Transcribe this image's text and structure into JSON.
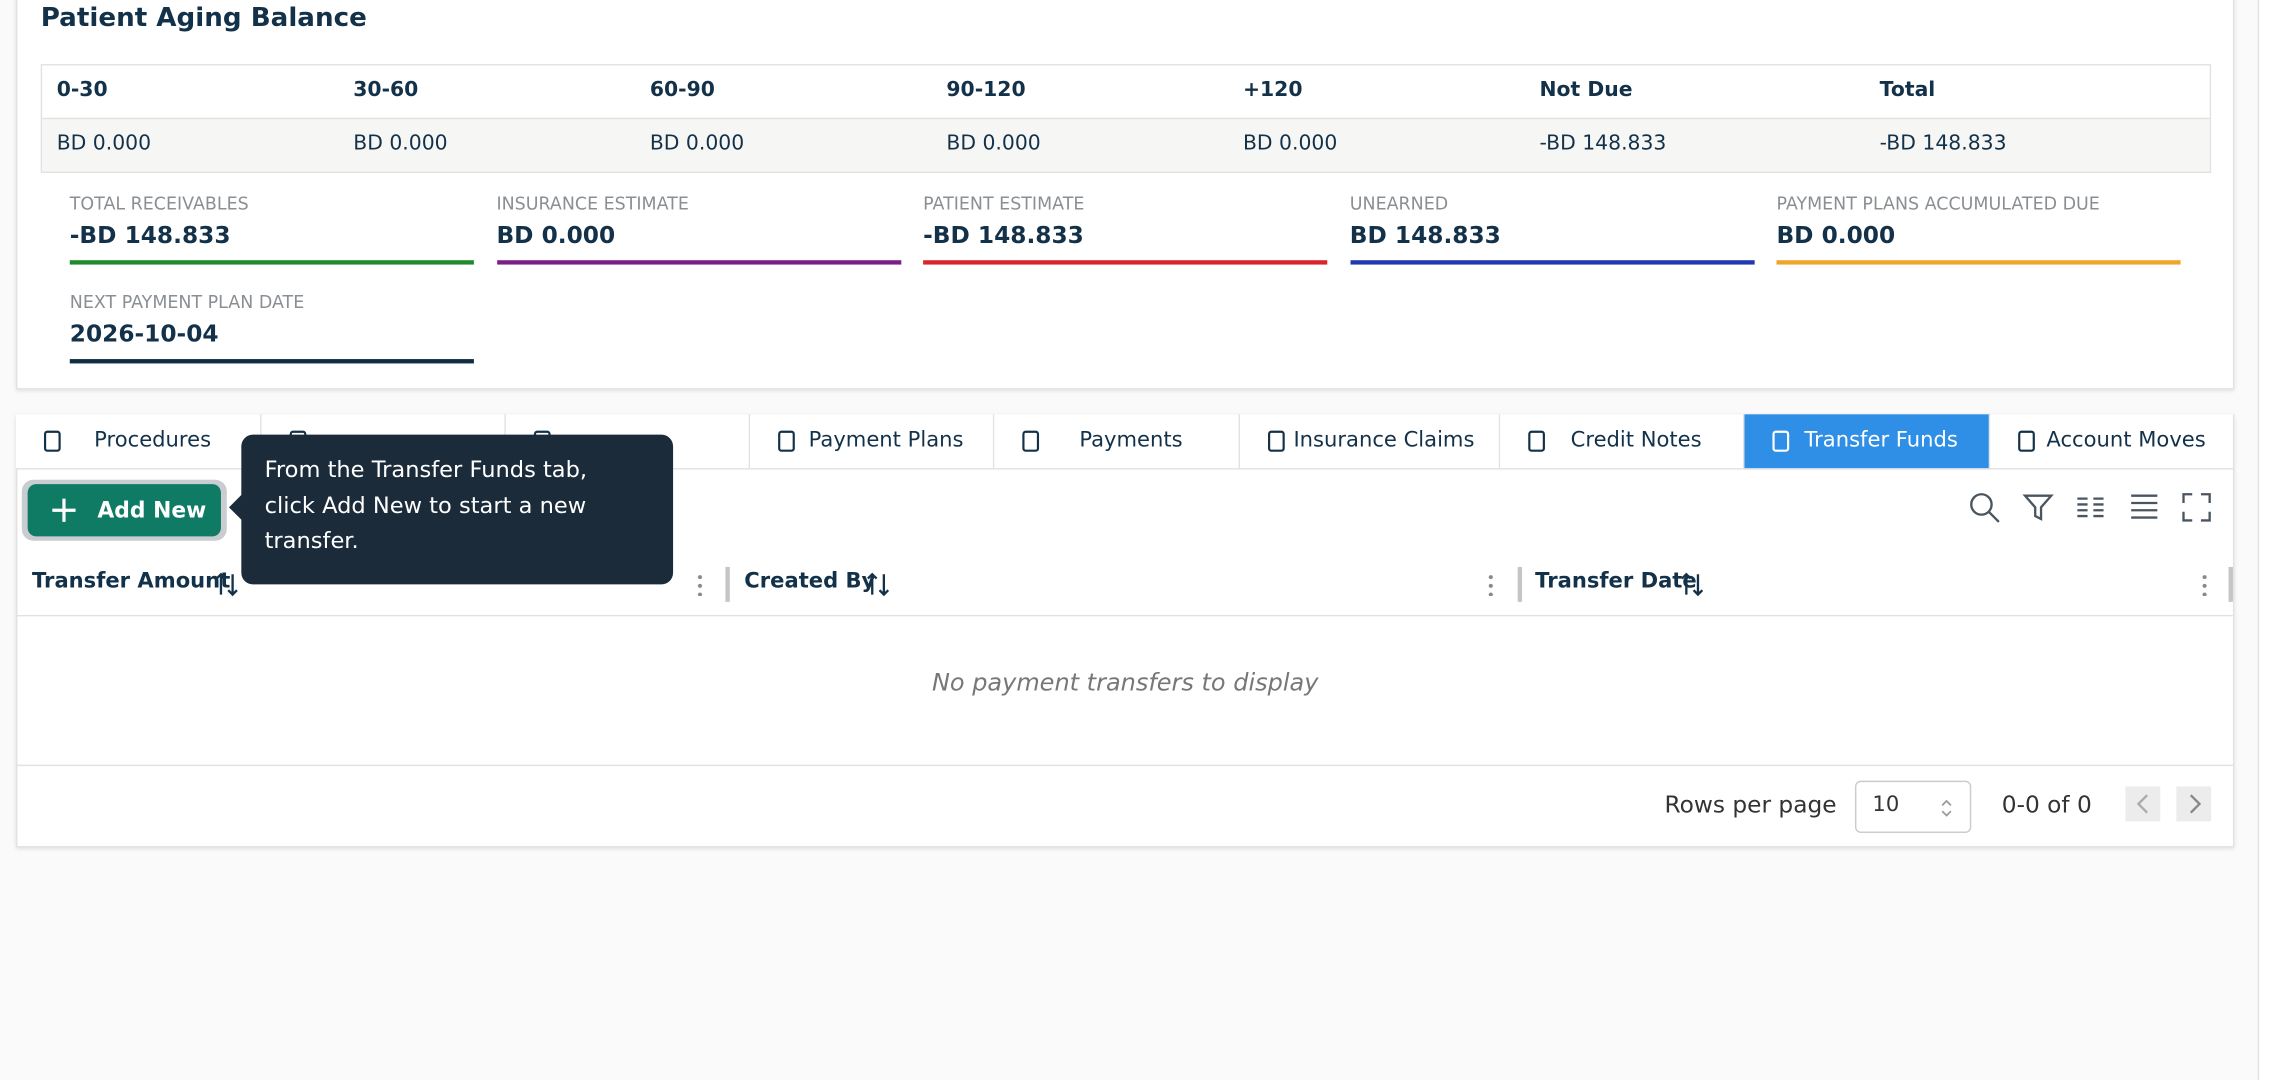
{
  "header": {
    "title": "Patient Aging Balance"
  },
  "aging": {
    "columns": [
      "0-30",
      "30-60",
      "60-90",
      "90-120",
      "+120",
      "Not Due",
      "Total"
    ],
    "values": [
      "BD 0.000",
      "BD 0.000",
      "BD 0.000",
      "BD 0.000",
      "BD 0.000",
      "-BD 148.833",
      "-BD 148.833"
    ]
  },
  "summary": [
    {
      "label": "TOTAL RECEIVABLES",
      "value": "-BD 148.833",
      "color": "#1e8a2e"
    },
    {
      "label": "INSURANCE ESTIMATE",
      "value": "BD 0.000",
      "color": "#7b1f86"
    },
    {
      "label": "PATIENT ESTIMATE",
      "value": "-BD 148.833",
      "color": "#d8242a"
    },
    {
      "label": "UNEARNED",
      "value": "BD 148.833",
      "color": "#2238b0"
    },
    {
      "label": "PAYMENT PLANS ACCUMULATED DUE",
      "value": "BD 0.000",
      "color": "#f0a52a"
    },
    {
      "label": "NEXT PAYMENT PLAN DATE",
      "value": "2026-10-04",
      "color": "#0f2d44"
    }
  ],
  "tabs": [
    {
      "name": "Procedures"
    },
    {
      "name": null
    },
    {
      "name": null
    },
    {
      "name": "Payment Plans"
    },
    {
      "name": "Payments"
    },
    {
      "name": "Insurance Claims"
    },
    {
      "name": "Credit Notes"
    },
    {
      "name": "Transfer Funds",
      "active": true
    },
    {
      "name": "Account Moves"
    }
  ],
  "button": "Add New",
  "tooltip": "From the Transfer Funds tab, click Add New to start a new transfer.",
  "table": {
    "columns": [
      "Transfer Amount",
      "Created By",
      "Transfer Date"
    ],
    "empty_message": "No payment transfers to display"
  },
  "pagination": {
    "label": "Rows per page",
    "rows": "10",
    "range": "0-0 of 0"
  }
}
